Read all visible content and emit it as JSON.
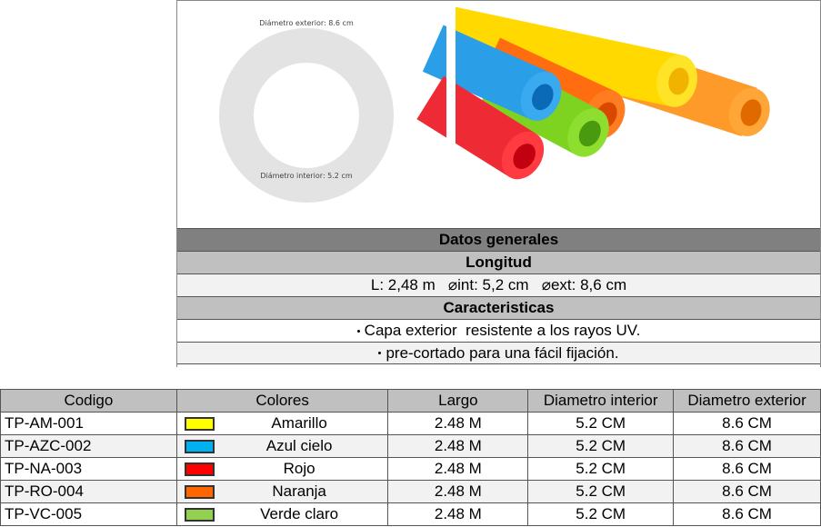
{
  "diagram": {
    "outer_label": "Diámetro exterior: 8.6 cm",
    "inner_label": "Diámetro interior: 5.2 cm"
  },
  "info": {
    "title": "Datos generales",
    "longitud_header": "Longitud",
    "dimensions": "L: 2,48 m   ⌀int: 5,2 cm   ⌀ext: 8,6 cm",
    "caracteristicas_header": "Caracteristicas",
    "features": [
      "Capa exterior  resistente a los rayos UV.",
      "pre-cortado para una fácil fijación."
    ]
  },
  "table": {
    "headers": [
      "Codigo",
      "Colores",
      "Largo",
      "Diametro interior",
      "Diametro exterior"
    ],
    "rows": [
      {
        "code": "TP-AM-001",
        "color": "Amarillo",
        "swatch": "#ffff00",
        "largo": "2.48 M",
        "int": "5.2 CM",
        "ext": "8.6 CM"
      },
      {
        "code": "TP-AZC-002",
        "color": "Azul cielo",
        "swatch": "#00b0f0",
        "largo": "2.48 M",
        "int": "5.2 CM",
        "ext": "8.6 CM"
      },
      {
        "code": "TP-NA-003",
        "color": "Rojo",
        "swatch": "#ff0000",
        "largo": "2.48 M",
        "int": "5.2 CM",
        "ext": "8.6 CM"
      },
      {
        "code": "TP-RO-004",
        "color": "Naranja",
        "swatch": "#ff6600",
        "largo": "2.48 M",
        "int": "5.2 CM",
        "ext": "8.6 CM"
      },
      {
        "code": "TP-VC-005",
        "color": "Verde claro",
        "swatch": "#92d050",
        "largo": "2.48 M",
        "int": "5.2 CM",
        "ext": "8.6 CM"
      }
    ]
  }
}
